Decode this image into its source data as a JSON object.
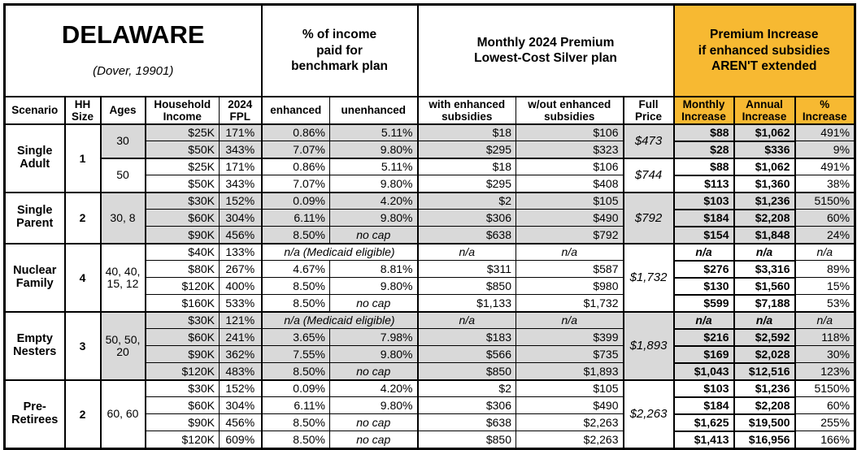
{
  "title": {
    "main": "DELAWARE",
    "sub": "(Dover, 19901)"
  },
  "group_headers": {
    "benchmark": "% of income\npaid for\nbenchmark plan",
    "premium": "Monthly 2024 Premium\nLowest-Cost Silver plan",
    "increase": "Premium Increase\nif enhanced subsidies\nAREN'T extended"
  },
  "columns": {
    "scenario": "Scenario",
    "hh_size": "HH\nSize",
    "ages": "Ages",
    "income": "Household\nIncome",
    "fpl": "2024\nFPL",
    "enhanced": "enhanced",
    "unenhanced": "unenhanced",
    "with_sub": "with enhanced\nsubsidies",
    "wout_sub": "w/out enhanced\nsubsidies",
    "full_price": "Full\nPrice",
    "monthly": "Monthly\nIncrease",
    "annual": "Annual\nIncrease",
    "pct": "%\nIncrease"
  },
  "colors": {
    "accent_orange": "#F7B932",
    "band_gray": "#D9D9D9",
    "border_black": "#000000"
  },
  "groups": [
    {
      "scenario": "Single Adult",
      "hh_size": "1",
      "subgroups": [
        {
          "ages": "30",
          "shaded": true,
          "full_price": "$473",
          "rows": [
            {
              "income": "$25K",
              "fpl": "171%",
              "enhanced": "0.86%",
              "unenhanced": "5.11%",
              "with_sub": "$18",
              "wout_sub": "$106",
              "monthly": "$88",
              "annual": "$1,062",
              "pct": "491%"
            },
            {
              "income": "$50K",
              "fpl": "343%",
              "enhanced": "7.07%",
              "unenhanced": "9.80%",
              "with_sub": "$295",
              "wout_sub": "$323",
              "monthly": "$28",
              "annual": "$336",
              "pct": "9%"
            }
          ]
        },
        {
          "ages": "50",
          "shaded": false,
          "full_price": "$744",
          "rows": [
            {
              "income": "$25K",
              "fpl": "171%",
              "enhanced": "0.86%",
              "unenhanced": "5.11%",
              "with_sub": "$18",
              "wout_sub": "$106",
              "monthly": "$88",
              "annual": "$1,062",
              "pct": "491%"
            },
            {
              "income": "$50K",
              "fpl": "343%",
              "enhanced": "7.07%",
              "unenhanced": "9.80%",
              "with_sub": "$295",
              "wout_sub": "$408",
              "monthly": "$113",
              "annual": "$1,360",
              "pct": "38%"
            }
          ]
        }
      ]
    },
    {
      "scenario": "Single Parent",
      "hh_size": "2",
      "subgroups": [
        {
          "ages": "30, 8",
          "shaded": true,
          "full_price": "$792",
          "rows": [
            {
              "income": "$30K",
              "fpl": "152%",
              "enhanced": "0.09%",
              "unenhanced": "4.20%",
              "with_sub": "$2",
              "wout_sub": "$105",
              "monthly": "$103",
              "annual": "$1,236",
              "pct": "5150%"
            },
            {
              "income": "$60K",
              "fpl": "304%",
              "enhanced": "6.11%",
              "unenhanced": "9.80%",
              "with_sub": "$306",
              "wout_sub": "$490",
              "monthly": "$184",
              "annual": "$2,208",
              "pct": "60%"
            },
            {
              "income": "$90K",
              "fpl": "456%",
              "enhanced": "8.50%",
              "unenhanced": "no cap",
              "with_sub": "$638",
              "wout_sub": "$792",
              "monthly": "$154",
              "annual": "$1,848",
              "pct": "24%"
            }
          ]
        }
      ]
    },
    {
      "scenario": "Nuclear Family",
      "hh_size": "4",
      "subgroups": [
        {
          "ages": "40, 40, 15, 12",
          "shaded": false,
          "full_price": "$1,732",
          "rows": [
            {
              "income": "$40K",
              "fpl": "133%",
              "medicaid": true,
              "enhanced": "n/a (Medicaid eligible)",
              "unenhanced": "",
              "with_sub": "n/a",
              "wout_sub": "n/a",
              "monthly": "n/a",
              "annual": "n/a",
              "pct": "n/a"
            },
            {
              "income": "$80K",
              "fpl": "267%",
              "enhanced": "4.67%",
              "unenhanced": "8.81%",
              "with_sub": "$311",
              "wout_sub": "$587",
              "monthly": "$276",
              "annual": "$3,316",
              "pct": "89%"
            },
            {
              "income": "$120K",
              "fpl": "400%",
              "enhanced": "8.50%",
              "unenhanced": "9.80%",
              "with_sub": "$850",
              "wout_sub": "$980",
              "monthly": "$130",
              "annual": "$1,560",
              "pct": "15%"
            },
            {
              "income": "$160K",
              "fpl": "533%",
              "enhanced": "8.50%",
              "unenhanced": "no cap",
              "with_sub": "$1,133",
              "wout_sub": "$1,732",
              "monthly": "$599",
              "annual": "$7,188",
              "pct": "53%"
            }
          ]
        }
      ]
    },
    {
      "scenario": "Empty Nesters",
      "hh_size": "3",
      "subgroups": [
        {
          "ages": "50, 50, 20",
          "shaded": true,
          "full_price": "$1,893",
          "rows": [
            {
              "income": "$30K",
              "fpl": "121%",
              "medicaid": true,
              "enhanced": "n/a (Medicaid eligible)",
              "unenhanced": "",
              "with_sub": "n/a",
              "wout_sub": "n/a",
              "monthly": "n/a",
              "annual": "n/a",
              "pct": "n/a"
            },
            {
              "income": "$60K",
              "fpl": "241%",
              "enhanced": "3.65%",
              "unenhanced": "7.98%",
              "with_sub": "$183",
              "wout_sub": "$399",
              "monthly": "$216",
              "annual": "$2,592",
              "pct": "118%"
            },
            {
              "income": "$90K",
              "fpl": "362%",
              "enhanced": "7.55%",
              "unenhanced": "9.80%",
              "with_sub": "$566",
              "wout_sub": "$735",
              "monthly": "$169",
              "annual": "$2,028",
              "pct": "30%"
            },
            {
              "income": "$120K",
              "fpl": "483%",
              "enhanced": "8.50%",
              "unenhanced": "no cap",
              "with_sub": "$850",
              "wout_sub": "$1,893",
              "monthly": "$1,043",
              "annual": "$12,516",
              "pct": "123%"
            }
          ]
        }
      ]
    },
    {
      "scenario": "Pre-Retirees",
      "hh_size": "2",
      "subgroups": [
        {
          "ages": "60, 60",
          "shaded": false,
          "full_price": "$2,263",
          "rows": [
            {
              "income": "$30K",
              "fpl": "152%",
              "enhanced": "0.09%",
              "unenhanced": "4.20%",
              "with_sub": "$2",
              "wout_sub": "$105",
              "monthly": "$103",
              "annual": "$1,236",
              "pct": "5150%"
            },
            {
              "income": "$60K",
              "fpl": "304%",
              "enhanced": "6.11%",
              "unenhanced": "9.80%",
              "with_sub": "$306",
              "wout_sub": "$490",
              "monthly": "$184",
              "annual": "$2,208",
              "pct": "60%"
            },
            {
              "income": "$90K",
              "fpl": "456%",
              "enhanced": "8.50%",
              "unenhanced": "no cap",
              "with_sub": "$638",
              "wout_sub": "$2,263",
              "monthly": "$1,625",
              "annual": "$19,500",
              "pct": "255%"
            },
            {
              "income": "$120K",
              "fpl": "609%",
              "enhanced": "8.50%",
              "unenhanced": "no cap",
              "with_sub": "$850",
              "wout_sub": "$2,263",
              "monthly": "$1,413",
              "annual": "$16,956",
              "pct": "166%"
            }
          ]
        }
      ]
    }
  ]
}
